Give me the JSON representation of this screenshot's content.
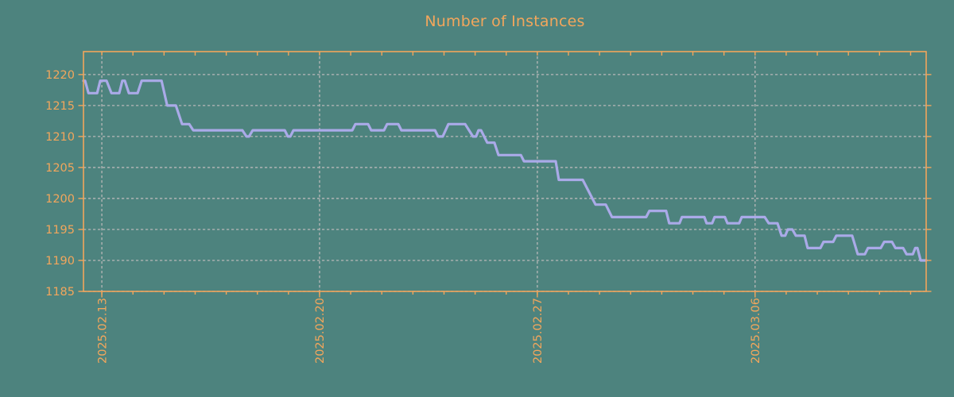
{
  "colors": {
    "background": "#4d837e",
    "axis_orange": "#f2a65c",
    "grid_gray": "#b8b8b8",
    "series_lavender": "#aaaae8"
  },
  "chart_data": {
    "type": "line",
    "title": "Number of Instances",
    "xlabel": "",
    "ylabel": "",
    "grid": "dashed both axes",
    "legend": "none",
    "y_ticks": [
      1185,
      1190,
      1195,
      1200,
      1205,
      1210,
      1215,
      1220
    ],
    "y_range": [
      1185,
      1223.7
    ],
    "x_ticks": [
      {
        "label": "2025.02.13",
        "day": 0
      },
      {
        "label": "2025.02.20",
        "day": 7
      },
      {
        "label": "2025.02.27",
        "day": 14
      },
      {
        "label": "2025.03.06",
        "day": 21
      }
    ],
    "x_minor_tick_every_days": 1,
    "x_range_days": [
      -0.59,
      26.5
    ],
    "series": [
      {
        "name": "instances",
        "color": "#aaaae8",
        "points_day_value": [
          [
            -0.59,
            1219
          ],
          [
            -0.54,
            1219
          ],
          [
            -0.43,
            1217
          ],
          [
            -0.15,
            1217
          ],
          [
            -0.05,
            1219
          ],
          [
            0.15,
            1219
          ],
          [
            0.31,
            1217
          ],
          [
            0.56,
            1217
          ],
          [
            0.66,
            1219
          ],
          [
            0.74,
            1219
          ],
          [
            0.87,
            1217
          ],
          [
            1.15,
            1217
          ],
          [
            1.28,
            1219
          ],
          [
            1.92,
            1219
          ],
          [
            2.1,
            1215
          ],
          [
            2.38,
            1215
          ],
          [
            2.58,
            1212
          ],
          [
            2.81,
            1212
          ],
          [
            2.94,
            1211
          ],
          [
            4.52,
            1211
          ],
          [
            4.65,
            1210
          ],
          [
            4.73,
            1210
          ],
          [
            4.85,
            1211
          ],
          [
            5.88,
            1211
          ],
          [
            5.98,
            1210
          ],
          [
            6.06,
            1210
          ],
          [
            6.16,
            1211
          ],
          [
            8.05,
            1211
          ],
          [
            8.15,
            1212
          ],
          [
            8.56,
            1212
          ],
          [
            8.66,
            1211
          ],
          [
            9.07,
            1211
          ],
          [
            9.17,
            1212
          ],
          [
            9.53,
            1212
          ],
          [
            9.63,
            1211
          ],
          [
            10.71,
            1211
          ],
          [
            10.81,
            1210
          ],
          [
            10.96,
            1210
          ],
          [
            11.14,
            1212
          ],
          [
            11.68,
            1212
          ],
          [
            11.93,
            1210
          ],
          [
            12.03,
            1210
          ],
          [
            12.11,
            1211
          ],
          [
            12.19,
            1211
          ],
          [
            12.39,
            1209
          ],
          [
            12.62,
            1209
          ],
          [
            12.75,
            1207
          ],
          [
            13.47,
            1207
          ],
          [
            13.57,
            1206
          ],
          [
            14.59,
            1206
          ],
          [
            14.69,
            1203
          ],
          [
            15.46,
            1203
          ],
          [
            15.87,
            1199
          ],
          [
            16.2,
            1199
          ],
          [
            16.4,
            1197
          ],
          [
            17.5,
            1197
          ],
          [
            17.6,
            1198
          ],
          [
            18.14,
            1198
          ],
          [
            18.24,
            1196
          ],
          [
            18.57,
            1196
          ],
          [
            18.65,
            1197
          ],
          [
            19.37,
            1197
          ],
          [
            19.44,
            1196
          ],
          [
            19.62,
            1196
          ],
          [
            19.7,
            1197
          ],
          [
            20.03,
            1197
          ],
          [
            20.11,
            1196
          ],
          [
            20.49,
            1196
          ],
          [
            20.57,
            1197
          ],
          [
            21.31,
            1197
          ],
          [
            21.44,
            1196
          ],
          [
            21.72,
            1196
          ],
          [
            21.85,
            1194
          ],
          [
            21.97,
            1194
          ],
          [
            22.05,
            1195
          ],
          [
            22.2,
            1195
          ],
          [
            22.31,
            1194
          ],
          [
            22.59,
            1194
          ],
          [
            22.69,
            1192
          ],
          [
            23.1,
            1192
          ],
          [
            23.2,
            1193
          ],
          [
            23.51,
            1193
          ],
          [
            23.61,
            1194
          ],
          [
            24.12,
            1194
          ],
          [
            24.3,
            1191
          ],
          [
            24.53,
            1191
          ],
          [
            24.63,
            1192
          ],
          [
            25.04,
            1192
          ],
          [
            25.15,
            1193
          ],
          [
            25.4,
            1193
          ],
          [
            25.51,
            1192
          ],
          [
            25.76,
            1192
          ],
          [
            25.87,
            1191
          ],
          [
            26.07,
            1191
          ],
          [
            26.15,
            1192
          ],
          [
            26.22,
            1192
          ],
          [
            26.32,
            1190
          ],
          [
            26.5,
            1190
          ]
        ]
      }
    ]
  }
}
